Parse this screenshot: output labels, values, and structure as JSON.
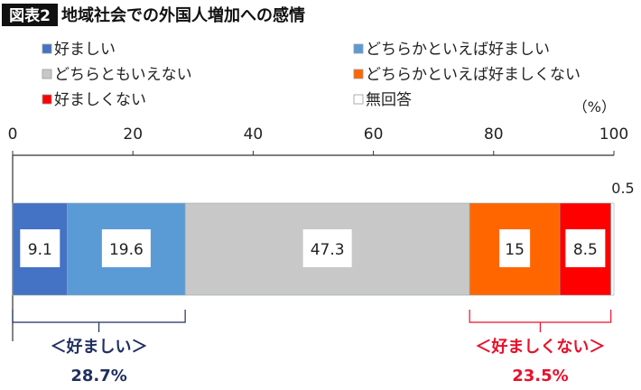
{
  "header": {
    "badge": "図表2",
    "title": "地域社会での外国人増加への感情"
  },
  "chart_data": {
    "type": "bar",
    "orientation": "horizontal-stacked",
    "unit_label": "（%）",
    "xlim": [
      0,
      100
    ],
    "ticks": [
      "0",
      "20",
      "40",
      "60",
      "80",
      "100"
    ],
    "grid": false,
    "legend_placement": "top",
    "series": [
      {
        "name": "好ましい",
        "value": 9.1,
        "label": "9.1",
        "color": "#4472C4"
      },
      {
        "name": "どちらかといえば好ましい",
        "value": 19.6,
        "label": "19.6",
        "color": "#5B9BD5"
      },
      {
        "name": "どちらともいえない",
        "value": 47.3,
        "label": "47.3",
        "color": "#C8C8C8"
      },
      {
        "name": "どちらかといえば好ましくない",
        "value": 15,
        "label": "15",
        "color": "#FF6600"
      },
      {
        "name": "好ましくない",
        "value": 8.5,
        "label": "8.5",
        "color": "#FF0000"
      },
      {
        "name": "無回答",
        "value": 0.5,
        "label": "0.5",
        "color": "#FFFFFF"
      }
    ],
    "annotations": [
      {
        "label": "＜好ましい＞",
        "total": "28.7%",
        "color": "#1F2F5F",
        "range": [
          0,
          28.7
        ]
      },
      {
        "label": "＜好ましくない＞",
        "total": "23.5%",
        "color": "#E8102A",
        "range": [
          76,
          99.5
        ]
      }
    ]
  }
}
